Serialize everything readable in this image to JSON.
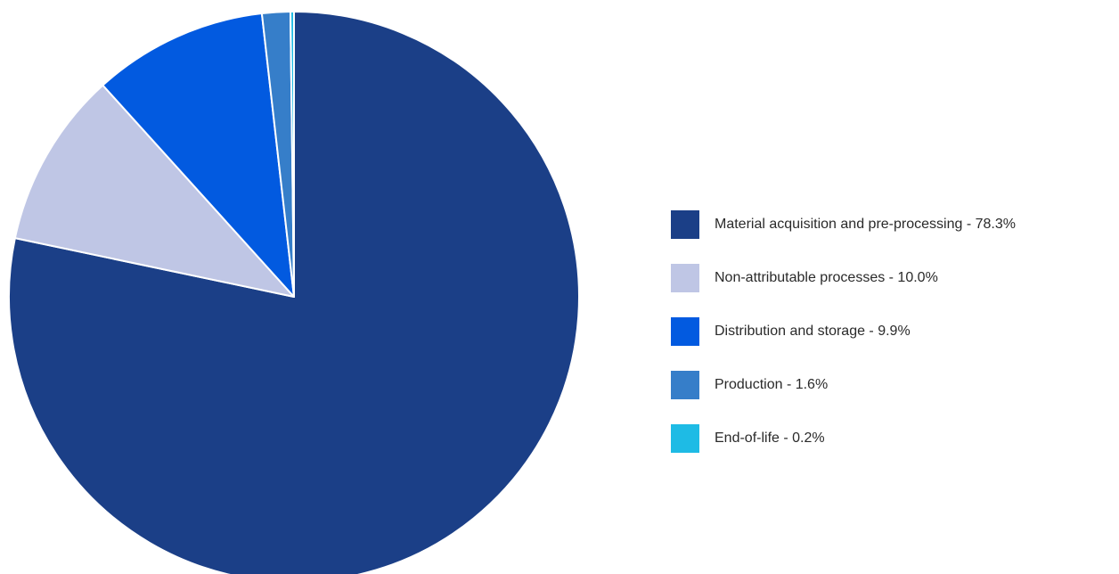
{
  "chart_data": {
    "type": "pie",
    "title": "",
    "categories": [
      "Material acquisition and pre-processing",
      "Non-attributable processes",
      "Distribution and storage",
      "Production",
      "End-of-life"
    ],
    "values": [
      78.3,
      10.0,
      9.9,
      1.6,
      0.2
    ],
    "unit": "%",
    "colors": [
      "#1b3f87",
      "#bfc6e5",
      "#025ae0",
      "#367ec9",
      "#1ebbe5"
    ],
    "start_angle_deg": 0,
    "direction": "clockwise",
    "legend": {
      "position": "right",
      "entries": [
        "Material acquisition and pre-processing - 78.3%",
        "Non-attributable processes - 10.0%",
        "Distribution and storage - 9.9%",
        "Production - 1.6%",
        "End-of-life - 0.2%"
      ]
    }
  }
}
